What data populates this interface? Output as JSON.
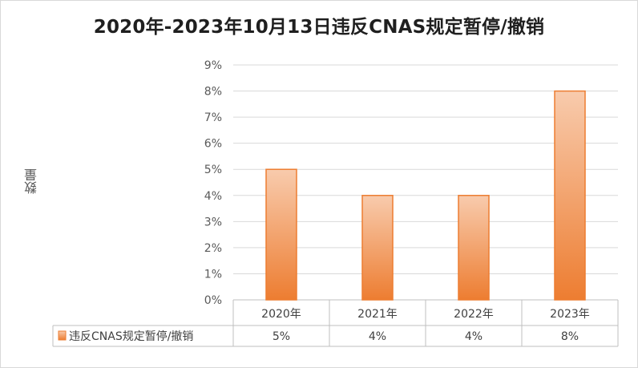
{
  "chart_data": {
    "type": "bar",
    "title": "2020年-2023年10月13日违反CNAS规定暂停/撤销",
    "ylabel": "数量",
    "xlabel": "",
    "categories": [
      "2020年",
      "2021年",
      "2022年",
      "2023年"
    ],
    "series": [
      {
        "name": "违反CNAS规定暂停/撤销",
        "values": [
          5,
          4,
          4,
          8
        ],
        "labels": [
          "5%",
          "4%",
          "4%",
          "8%"
        ]
      }
    ],
    "ylim": [
      0,
      9
    ],
    "yticks": [
      "0%",
      "1%",
      "2%",
      "3%",
      "4%",
      "5%",
      "6%",
      "7%",
      "8%",
      "9%"
    ],
    "grid": true,
    "legend": "data-table",
    "colors": {
      "bar_top": "#f8cbad",
      "bar_bottom": "#ed7d31",
      "bar_edge": "#ed7d31"
    }
  }
}
